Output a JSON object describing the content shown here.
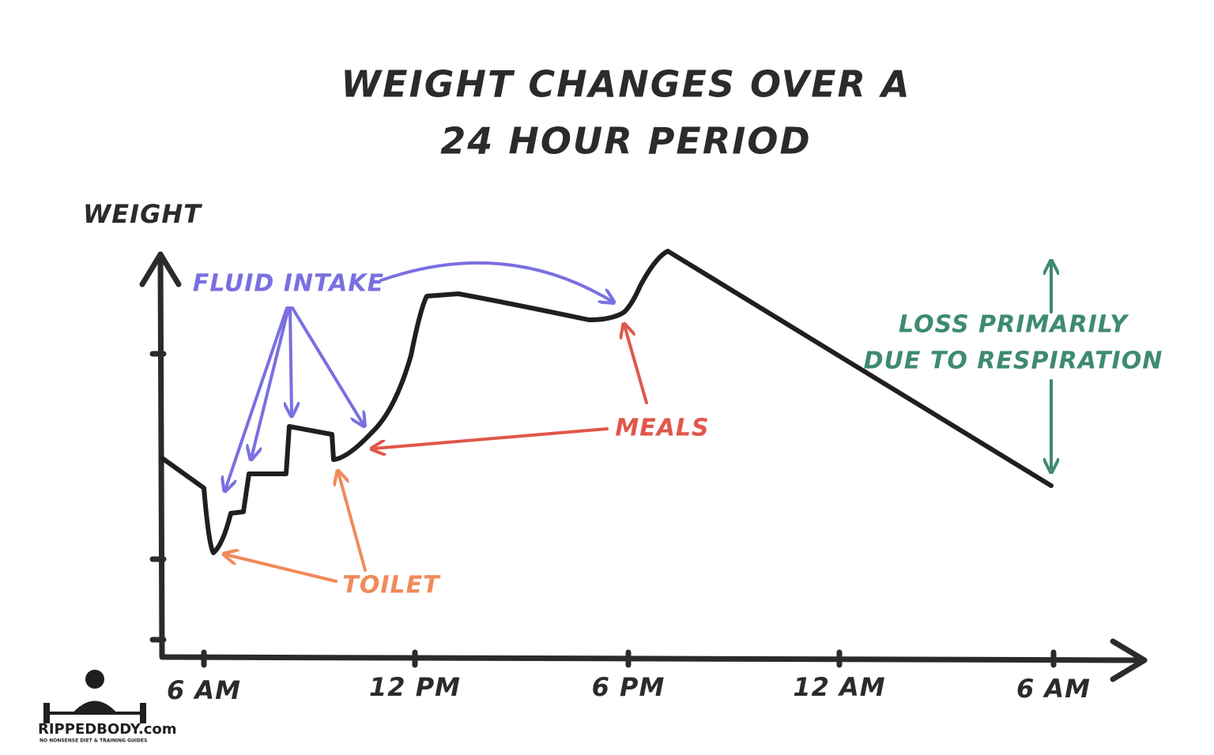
{
  "title": {
    "lines": [
      "WEIGHT CHANGES OVER A",
      "24 HOUR PERIOD"
    ]
  },
  "y_axis": {
    "label": "WEIGHT"
  },
  "x_axis": {
    "ticks": [
      "6 AM",
      "12 PM",
      "6 PM",
      "12 AM",
      "6 AM"
    ]
  },
  "annotations": {
    "fluid_intake": "FLUID INTAKE",
    "meals": "MEALS",
    "toilet": "TOILET",
    "respiration": [
      "LOSS PRIMARILY",
      "DUE TO RESPIRATION"
    ]
  },
  "logo": {
    "name": "RIPPEDBODY.com",
    "tagline": "NO NONSENSE DIET & TRAINING GUIDES"
  }
}
